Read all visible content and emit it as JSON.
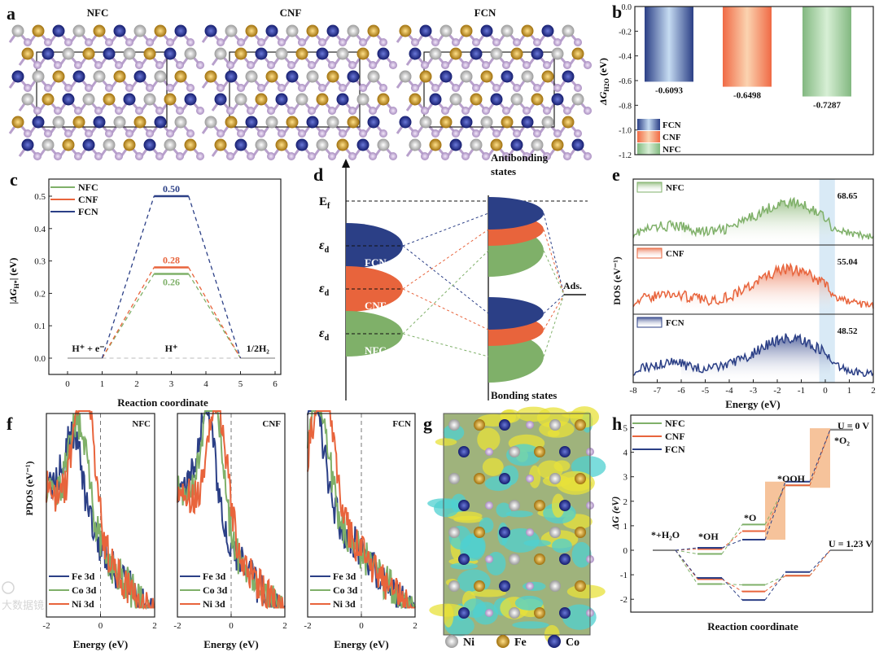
{
  "panels": {
    "a": {
      "label": "a",
      "structures": [
        "NFC",
        "CNF",
        "FCN"
      ]
    },
    "b": {
      "label": "b"
    },
    "c": {
      "label": "c"
    },
    "d": {
      "label": "d",
      "ef": "E",
      "ef_sub": "f",
      "eps": "ε",
      "eps_sub": "d",
      "left_labels": [
        "FCN",
        "CNF",
        "NFC"
      ],
      "antibonding": [
        "Antibonding",
        "states"
      ],
      "bonding": "Bonding states",
      "ads": "Ads."
    },
    "e": {
      "label": "e"
    },
    "f": {
      "label": "f"
    },
    "g": {
      "label": "g",
      "legend": [
        "Ni",
        "Fe",
        "Co"
      ]
    },
    "h": {
      "label": "h"
    }
  },
  "colors": {
    "FCN": "#2b3f86",
    "CNF": "#e8643c",
    "NFC": "#7fb069",
    "Ni": "#bdbdbd",
    "Fe": "#c8961e",
    "Co": "#1f2a8a",
    "P": "#b8a0cc",
    "highlight": "#f5b98a"
  },
  "watermark": "大数据镜",
  "chart_data": [
    {
      "id": "b",
      "type": "bar",
      "categories": [
        "FCN",
        "CNF",
        "NFC"
      ],
      "values": [
        -0.6093,
        -0.6498,
        -0.7287
      ],
      "value_labels": [
        "-0.6093",
        "-0.6498",
        "-0.7287"
      ],
      "ylabel": "ΔG",
      "ylabel_sub": "H2O",
      "ylabel_unit": " (eV)",
      "ylim": [
        -1.2,
        0.0
      ],
      "yticks": [
        "0.0",
        "-0.2",
        "-0.4",
        "-0.6",
        "-0.8",
        "-1.0",
        "-1.2"
      ],
      "legend": [
        "FCN",
        "CNF",
        "NFC"
      ],
      "legend_position": "bottom-left"
    },
    {
      "id": "c",
      "type": "line",
      "title": "",
      "xlabel": "Reaction coordinate",
      "ylabel": "|ΔG",
      "ylabel_sub": "H*",
      "ylabel_unit": "| (eV)",
      "xlim": [
        -0.5,
        6.5
      ],
      "ylim": [
        -0.05,
        0.55
      ],
      "xticks": [
        "0",
        "1",
        "2",
        "3",
        "4",
        "5",
        "6"
      ],
      "yticks": [
        "0.0",
        "0.1",
        "0.2",
        "0.3",
        "0.4",
        "0.5"
      ],
      "series": [
        {
          "name": "NFC",
          "value": 0.26,
          "label": "0.26"
        },
        {
          "name": "CNF",
          "value": 0.28,
          "label": "0.28"
        },
        {
          "name": "FCN",
          "value": 0.5,
          "label": "0.50"
        }
      ],
      "states": [
        "H⁺ + e⁻",
        "H⁺",
        "1/2H₂"
      ],
      "legend_position": "top-left"
    },
    {
      "id": "e",
      "type": "area",
      "xlabel": "Energy (eV)",
      "ylabel": "DOS (eV⁻¹)",
      "xlim": [
        -8,
        2
      ],
      "xticks": [
        "-8",
        "-7",
        "-6",
        "-5",
        "-4",
        "-3",
        "-2",
        "-1",
        "0",
        "1",
        "2"
      ],
      "series": [
        {
          "name": "NFC",
          "annotation": "68.65"
        },
        {
          "name": "CNF",
          "annotation": "55.04"
        },
        {
          "name": "FCN",
          "annotation": "48.52"
        }
      ]
    },
    {
      "id": "f",
      "type": "line",
      "xlabel": "Energy (eV)",
      "ylabel": "PDOS (eV⁻¹)",
      "xlim": [
        -2,
        2
      ],
      "xticks": [
        "-2",
        "0",
        "2"
      ],
      "subplots": [
        "NFC",
        "CNF",
        "FCN"
      ],
      "series": [
        "Fe 3d",
        "Co 3d",
        "Ni 3d"
      ]
    },
    {
      "id": "h",
      "type": "line",
      "xlabel": "Reaction coordinate",
      "ylabel": "ΔG (eV)",
      "ylim": [
        -2.5,
        5.5
      ],
      "yticks": [
        "5",
        "4",
        "3",
        "2",
        "1",
        "0",
        "-1",
        "-2"
      ],
      "states": [
        "*+H₂O",
        "*OH",
        "*O",
        "*OOH",
        "*O₂"
      ],
      "conditions": [
        "U = 0 V",
        "U = 1.23 V"
      ],
      "series": [
        {
          "name": "NFC",
          "U0": [
            0,
            -0.15,
            1.05,
            2.65,
            4.92
          ],
          "U123": [
            0,
            -1.38,
            -1.41,
            -1.04,
            0
          ]
        },
        {
          "name": "CNF",
          "U0": [
            0,
            0.05,
            0.78,
            2.65,
            4.92
          ],
          "U123": [
            0,
            -1.18,
            -1.68,
            -1.04,
            0
          ]
        },
        {
          "name": "FCN",
          "U0": [
            0,
            0.1,
            0.43,
            2.8,
            4.92
          ],
          "U123": [
            0,
            -1.13,
            -2.03,
            -0.89,
            0
          ]
        }
      ],
      "legend_position": "top-left"
    }
  ]
}
